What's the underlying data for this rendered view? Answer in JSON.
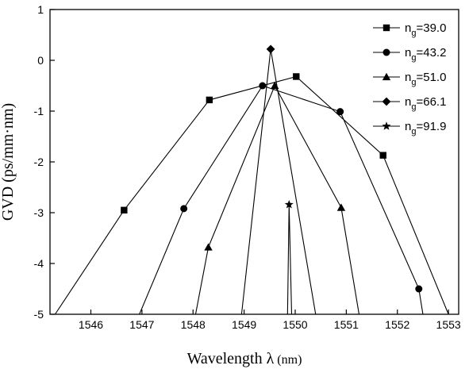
{
  "chart_data": {
    "type": "line",
    "xlabel": "Wavelength λ",
    "xlabel_unit": "(nm)",
    "ylabel": "GVD (ps/mm·nm)",
    "xlim": [
      1545.2,
      1553.2
    ],
    "ylim": [
      -5,
      1
    ],
    "x_ticks": [
      1546,
      1547,
      1548,
      1549,
      1550,
      1551,
      1552,
      1553
    ],
    "y_ticks": [
      1,
      0,
      -1,
      -2,
      -3,
      -4,
      -5
    ],
    "grid": false,
    "legend_position": "top-right",
    "series": [
      {
        "name_base": "n",
        "name_sub": "g",
        "name_value": "=39.0",
        "marker": "square",
        "x": [
          1545.3,
          1546.65,
          1548.32,
          1550.02,
          1551.72,
          1553.0
        ],
        "y": [
          -5.0,
          -2.95,
          -0.78,
          -0.32,
          -1.87,
          -5.0
        ]
      },
      {
        "name_base": "n",
        "name_sub": "g",
        "name_value": "=43.2",
        "marker": "circle",
        "x": [
          1546.95,
          1547.82,
          1549.36,
          1550.88,
          1552.42,
          1552.5
        ],
        "y": [
          -5.0,
          -2.92,
          -0.5,
          -1.01,
          -4.5,
          -5.0
        ]
      },
      {
        "name_base": "n",
        "name_sub": "g",
        "name_value": "=51.0",
        "marker": "triangle",
        "x": [
          1548.05,
          1548.3,
          1549.6,
          1550.9,
          1551.25
        ],
        "y": [
          -5.0,
          -3.68,
          -0.5,
          -2.9,
          -5.0
        ]
      },
      {
        "name_base": "n",
        "name_sub": "g",
        "name_value": "=66.1",
        "marker": "diamond",
        "x": [
          1548.95,
          1549.52,
          1550.4
        ],
        "y": [
          -5.0,
          0.22,
          -5.0
        ]
      },
      {
        "name_base": "n",
        "name_sub": "g",
        "name_value": "=91.9",
        "marker": "star",
        "x": [
          1549.85,
          1549.88,
          1549.93
        ],
        "y": [
          -5.0,
          -2.84,
          -5.0
        ]
      }
    ]
  }
}
